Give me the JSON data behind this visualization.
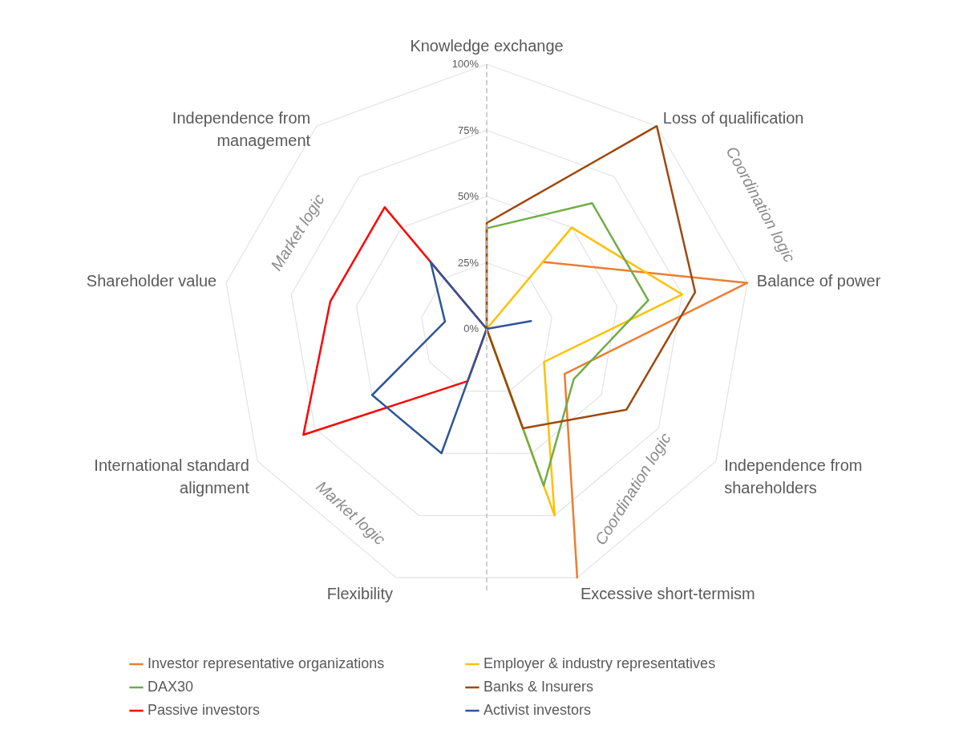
{
  "chart_data": {
    "type": "radar",
    "categories": [
      "Knowledge exchange",
      "Loss of qualification",
      "Balance of power",
      "Independence from shareholders",
      "Excessive short-termism",
      "Flexibility",
      "International standard alignment",
      "Shareholder value",
      "Independence from management"
    ],
    "series": [
      {
        "name": "Investor representative organizations",
        "color": "#ed7d31",
        "values": [
          null,
          33,
          100,
          34,
          100,
          null,
          null,
          null,
          null
        ]
      },
      {
        "name": "Employer & industry representatives",
        "color": "#ffc000",
        "values": [
          0,
          50,
          75,
          25,
          75,
          0,
          0,
          0,
          0
        ]
      },
      {
        "name": "DAX30",
        "color": "#70ad47",
        "values": [
          38,
          62,
          62,
          38,
          63,
          0,
          0,
          0,
          0
        ]
      },
      {
        "name": "Banks & Insurers",
        "color": "#9e480e",
        "values": [
          40,
          100,
          80,
          61,
          40,
          0,
          0,
          0,
          0
        ]
      },
      {
        "name": "Passive investors",
        "color": "#ff0000",
        "values": [
          0,
          0,
          0,
          0,
          0,
          21,
          80,
          60,
          60
        ]
      },
      {
        "name": "Activist investors",
        "color": "#2f5597",
        "values": [
          0,
          0,
          17,
          0,
          0,
          50,
          50,
          16,
          33
        ]
      }
    ],
    "ylim": [
      0,
      100
    ],
    "yticks": [
      {
        "value": 0,
        "label": "0%"
      },
      {
        "value": 25,
        "label": "25%"
      },
      {
        "value": 50,
        "label": "50%"
      },
      {
        "value": 75,
        "label": "75%"
      },
      {
        "value": 100,
        "label": "100%"
      }
    ],
    "grid": true,
    "legend": "bottom",
    "annotations": [
      "Coordination logic",
      "Coordination logic",
      "Market logic",
      "Market logic"
    ]
  }
}
